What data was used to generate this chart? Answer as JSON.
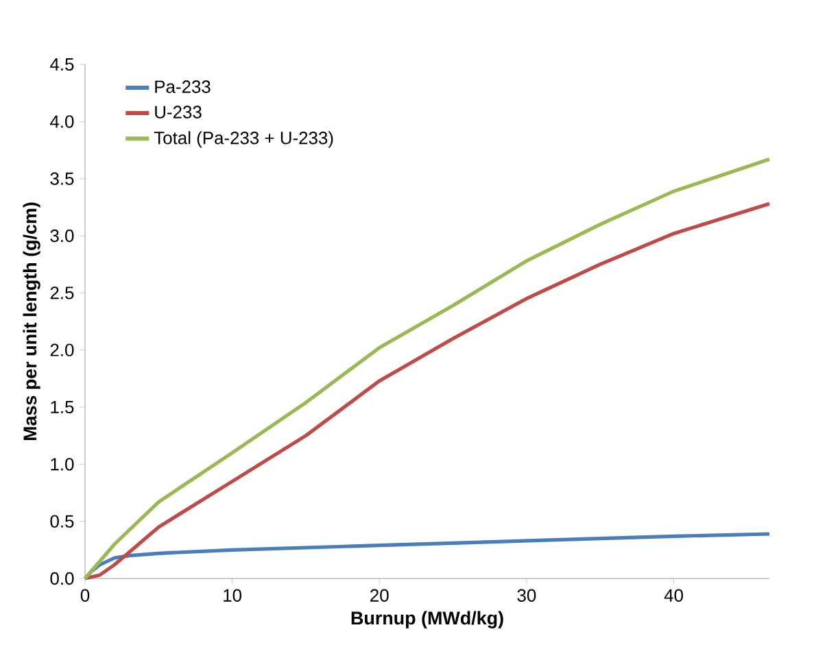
{
  "chart_data": {
    "type": "line",
    "xlabel": "Burnup (MWd/kg)",
    "ylabel": "Mass per unit length (g/cm)",
    "xlim": [
      0,
      46.5
    ],
    "xticks": [
      0,
      10,
      20,
      30,
      40
    ],
    "ylim": [
      0,
      4.5
    ],
    "yticks": [
      {
        "value": 0,
        "label": "0.0"
      },
      {
        "value": 0.5,
        "label": "0.5"
      },
      {
        "value": 1,
        "label": "1.0"
      },
      {
        "value": 1.5,
        "label": "1.5"
      },
      {
        "value": 2,
        "label": "2.0"
      },
      {
        "value": 2.5,
        "label": "2.5"
      },
      {
        "value": 3,
        "label": "3.0"
      },
      {
        "value": 3.5,
        "label": "3.5"
      },
      {
        "value": 4,
        "label": "4.0"
      },
      {
        "value": 4.5,
        "label": "4.5"
      }
    ],
    "legend": "top left",
    "marker": "none",
    "line_style": "solid",
    "series": [
      {
        "name": "Pa-233",
        "color": "#4a7ebb",
        "x": [
          0,
          0.5,
          1,
          2,
          3,
          5,
          10,
          15,
          20,
          25,
          30,
          35,
          40,
          46.5
        ],
        "values": [
          0,
          0.07,
          0.12,
          0.18,
          0.2,
          0.22,
          0.25,
          0.27,
          0.29,
          0.31,
          0.33,
          0.35,
          0.37,
          0.39
        ]
      },
      {
        "name": "U-233",
        "color": "#be4b48",
        "x": [
          0,
          1,
          2,
          5,
          10,
          15,
          20,
          25,
          30,
          35,
          40,
          46.5
        ],
        "values": [
          0,
          0.03,
          0.12,
          0.45,
          0.85,
          1.25,
          1.73,
          2.1,
          2.45,
          2.75,
          3.02,
          3.28
        ]
      },
      {
        "name": "Total (Pa-233 + U-233)",
        "color": "#98b954",
        "x": [
          0,
          1,
          2,
          5,
          10,
          15,
          20,
          25,
          30,
          35,
          40,
          46.5
        ],
        "values": [
          0,
          0.15,
          0.3,
          0.67,
          1.1,
          1.54,
          2.02,
          2.39,
          2.78,
          3.1,
          3.39,
          3.67
        ]
      }
    ]
  }
}
